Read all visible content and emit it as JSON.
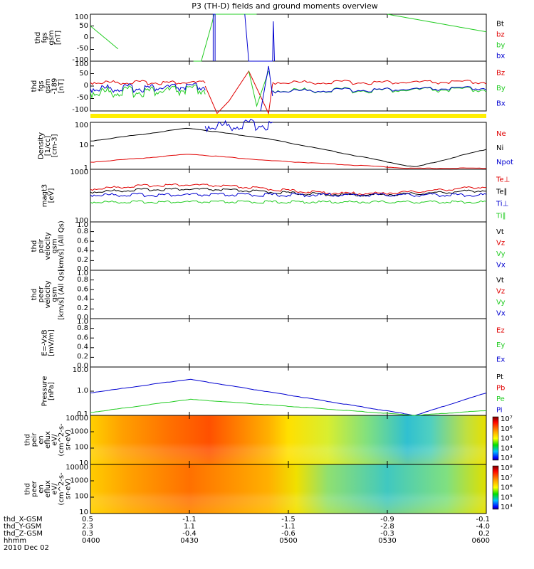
{
  "title": "P3 (TH-D) fields and ground moments overview",
  "colors": {
    "red": "#e00000",
    "green": "#22cc22",
    "blue": "#0000d0",
    "black": "#000000",
    "yellow": "#ffee00"
  },
  "panels": [
    {
      "key": "fgs",
      "ylabel": [
        "thd",
        "fgs",
        "gsm",
        "[nT]"
      ],
      "ticks": [
        "100",
        "50",
        "0",
        "-50",
        "-100"
      ],
      "legend": [
        {
          "t": "Bt",
          "c": "black"
        },
        {
          "t": "bz",
          "c": "red"
        },
        {
          "t": "by",
          "c": "green"
        },
        {
          "t": "bx",
          "c": "blue"
        }
      ]
    },
    {
      "key": "fgs2",
      "ylabel": [
        "thd",
        "fgs",
        "gsm",
        "-189",
        "[nT]"
      ],
      "ticks": [
        "100",
        "50",
        "0",
        "-50",
        "-100"
      ],
      "legend": [
        {
          "t": "Bz",
          "c": "red"
        },
        {
          "t": "By",
          "c": "green"
        },
        {
          "t": "Bx",
          "c": "blue"
        }
      ]
    },
    {
      "key": "density",
      "ylabel": [
        "Density",
        "[1/cc]",
        "[cm-3]"
      ],
      "ticks": [
        "100",
        "10",
        "1"
      ],
      "legend": [
        {
          "t": "Ne",
          "c": "red"
        },
        {
          "t": "Ni",
          "c": "black"
        },
        {
          "t": "Npot",
          "c": "blue"
        }
      ]
    },
    {
      "key": "temp",
      "ylabel": [
        "magt3",
        "[eV]"
      ],
      "ticks": [
        "1000",
        "100"
      ],
      "legend": [
        {
          "t": "Te⊥",
          "c": "red"
        },
        {
          "t": "Te∥",
          "c": "black"
        },
        {
          "t": "Ti⊥",
          "c": "blue"
        },
        {
          "t": "Ti∥",
          "c": "green"
        }
      ]
    },
    {
      "key": "peir",
      "ylabel": [
        "thd",
        "peir",
        "velocity",
        "gsm",
        "[km/s] (All Qs)"
      ],
      "ticks": [
        "1.0",
        "0.8",
        "0.6",
        "0.4",
        "0.2",
        "0.0"
      ],
      "legend": [
        {
          "t": "Vt",
          "c": "black"
        },
        {
          "t": "Vz",
          "c": "red"
        },
        {
          "t": "Vy",
          "c": "green"
        },
        {
          "t": "Vx",
          "c": "blue"
        }
      ]
    },
    {
      "key": "peer",
      "ylabel": [
        "thd",
        "peer",
        "velocity",
        "gsm",
        "[km/s] (All Qs)"
      ],
      "ticks": [
        "1.0",
        "0.8",
        "0.6",
        "0.4",
        "0.2",
        "0.0"
      ],
      "legend": [
        {
          "t": "Vt",
          "c": "black"
        },
        {
          "t": "Vz",
          "c": "red"
        },
        {
          "t": "Vy",
          "c": "green"
        },
        {
          "t": "Vx",
          "c": "blue"
        }
      ]
    },
    {
      "key": "efield",
      "ylabel": [
        "E=-VxB",
        "[mV/m]"
      ],
      "ticks": [
        "1.0",
        "0.8",
        "0.6",
        "0.4",
        "0.2",
        "0.0"
      ],
      "legend": [
        {
          "t": "Ez",
          "c": "red"
        },
        {
          "t": "Ey",
          "c": "green"
        },
        {
          "t": "Ex",
          "c": "blue"
        }
      ]
    },
    {
      "key": "pressure",
      "ylabel": [
        "Pressure",
        "[nPa]"
      ],
      "ticks": [
        "10.0",
        "1.0",
        "0.1"
      ],
      "legend": [
        {
          "t": "Pt",
          "c": "black"
        },
        {
          "t": "Pb",
          "c": "red"
        },
        {
          "t": "Pe",
          "c": "green"
        },
        {
          "t": "Pi",
          "c": "blue"
        }
      ]
    },
    {
      "key": "peir_flux",
      "ylabel": [
        "thd",
        "peir",
        "en",
        "eflux",
        "eV/",
        "(cm^2-s-",
        "sr-eV)"
      ],
      "ticks": [
        "10000",
        "1000",
        "100",
        "10"
      ],
      "colorbar": [
        "10⁷",
        "10⁶",
        "10⁵",
        "10⁴",
        "10³"
      ]
    },
    {
      "key": "peer_flux",
      "ylabel": [
        "thd",
        "peer",
        "en",
        "eflux",
        "eV/",
        "(cm^2-s-",
        "sr-eV)"
      ],
      "ticks": [
        "10000",
        "1000",
        "100",
        "10"
      ],
      "colorbar": [
        "10⁸",
        "10⁷",
        "10⁶",
        "10⁵",
        "10⁴"
      ]
    }
  ],
  "orbit": {
    "labels": [
      "thd_X-GSM",
      "thd_Y-GSM",
      "thd_Z-GSM",
      "hhmm",
      "2010 Dec 02"
    ],
    "columns": [
      {
        "x": "0.5",
        "y": "2.3",
        "z": "0.3",
        "t": "0400"
      },
      {
        "x": "-1.1",
        "y": "1.1",
        "z": "-0.4",
        "t": "0430"
      },
      {
        "x": "-1.5",
        "y": "-1.1",
        "z": "-0.6",
        "t": "0500"
      },
      {
        "x": "-0.9",
        "y": "-2.8",
        "z": "-0.3",
        "t": "0530"
      },
      {
        "x": "-0.1",
        "y": "-4.0",
        "z": "0.2",
        "t": "0600"
      }
    ]
  },
  "chart_data": {
    "type": "line",
    "title": "P3 (TH-D) fields and ground moments overview",
    "x": [
      "0400",
      "0430",
      "0500",
      "0530",
      "0600"
    ],
    "series": [
      {
        "name": "Ni",
        "values": [
          15,
          90,
          20,
          0.4,
          5
        ]
      },
      {
        "name": "Ne",
        "values": [
          0.8,
          2.5,
          1.0,
          0.3,
          0.35
        ]
      },
      {
        "name": "Pi",
        "values": [
          0.5,
          3.5,
          1.0,
          0.03,
          0.5
        ]
      },
      {
        "name": "Pe",
        "values": [
          0.03,
          0.2,
          0.06,
          0.02,
          0.04
        ]
      }
    ]
  }
}
